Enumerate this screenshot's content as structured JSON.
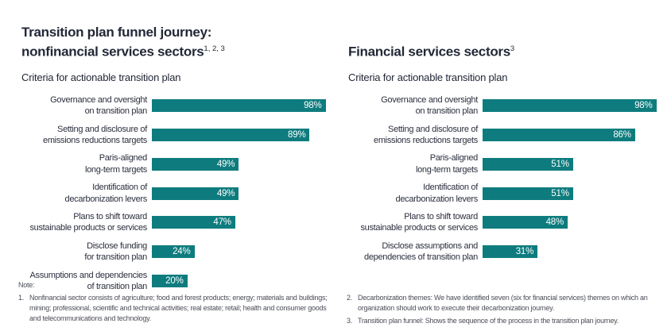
{
  "colors": {
    "bar_teal": "#0e7c7e",
    "title_dark": "#232837",
    "note_gray": "#4b4e58",
    "value_text": "#ffffff",
    "background": "#ffffff"
  },
  "panels": [
    {
      "title_lines": [
        "Transition plan funnel journey:",
        "nonfinancial services sectors"
      ],
      "title_sup": "1, 2, 3",
      "subtitle": "Criteria for actionable transition plan",
      "notes_header": "Note:",
      "notes": [
        {
          "num": "1.",
          "text": "Nonfinancial sector consists of agriculture; food and forest products; energy; materials and buildings; mining; professional, scientific and technical activities; real estate; retail; health and consumer goods and telecommunications and technology."
        }
      ]
    },
    {
      "title_lines": [
        "Financial services sectors"
      ],
      "title_sup": "3",
      "subtitle": "Criteria for actionable transition plan",
      "notes_header": "",
      "notes": [
        {
          "num": "2.",
          "text": "Decarbonization themes: We have identified seven (six for financial services) themes on which an organization should work to execute their decarbonization journey."
        },
        {
          "num": "3.",
          "text": "Transition plan funnel: Shows the sequence of the process in the transition plan journey."
        }
      ]
    }
  ],
  "chart_data": [
    {
      "type": "bar",
      "orientation": "horizontal",
      "title": "Transition plan funnel journey: nonfinancial services sectors",
      "subtitle": "Criteria for actionable transition plan",
      "unit": "%",
      "xlim": [
        0,
        100
      ],
      "grid": false,
      "legend": false,
      "bar_color": "#0e7c7e",
      "value_label_position": "inside-end",
      "categories": [
        "Governance and oversight on transition plan",
        "Setting and disclosure of emissions reductions targets",
        "Paris-aligned long-term targets",
        "Identification of decarbonization levers",
        "Plans to shift toward sustainable products or services",
        "Disclose funding for transition plan",
        "Assumptions and dependencies of transition plan"
      ],
      "categories_lines": [
        [
          "Governance and oversight",
          "on transition plan"
        ],
        [
          "Setting and disclosure of",
          "emissions reductions targets"
        ],
        [
          "Paris-aligned",
          "long-term targets"
        ],
        [
          "Identification of",
          "decarbonization levers"
        ],
        [
          "Plans to shift toward",
          "sustainable products or services"
        ],
        [
          "Disclose funding",
          "for transition plan"
        ],
        [
          "Assumptions and dependencies",
          "of transition plan"
        ]
      ],
      "values": [
        98,
        89,
        49,
        49,
        47,
        24,
        20
      ],
      "value_labels": [
        "98%",
        "89%",
        "49%",
        "49%",
        "47%",
        "24%",
        "20%"
      ]
    },
    {
      "type": "bar",
      "orientation": "horizontal",
      "title": "Financial services sectors",
      "subtitle": "Criteria for actionable transition plan",
      "unit": "%",
      "xlim": [
        0,
        100
      ],
      "grid": false,
      "legend": false,
      "bar_color": "#0e7c7e",
      "value_label_position": "inside-end",
      "categories": [
        "Governance and oversight on transition plan",
        "Setting and disclosure of emissions reductions targets",
        "Paris-aligned long-term targets",
        "Identification of decarbonization levers",
        "Plans to shift toward sustainable products or services",
        "Disclose assumptions and dependencies of transition plan"
      ],
      "categories_lines": [
        [
          "Governance and oversight",
          "on transition plan"
        ],
        [
          "Setting and disclosure of",
          "emissions reductions targets"
        ],
        [
          "Paris-aligned",
          "long-term targets"
        ],
        [
          "Identification of",
          "decarbonization levers"
        ],
        [
          "Plans to shift toward",
          "sustainable products or services"
        ],
        [
          "Disclose assumptions and",
          "dependencies of transition plan"
        ]
      ],
      "values": [
        98,
        86,
        51,
        51,
        48,
        31
      ],
      "value_labels": [
        "98%",
        "86%",
        "51%",
        "51%",
        "48%",
        "31%"
      ]
    }
  ]
}
